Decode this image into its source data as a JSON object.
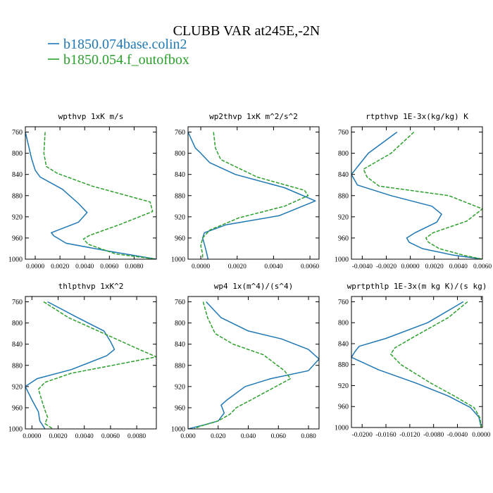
{
  "figure": {
    "title": "CLUBB VAR at245E,-2N",
    "legend": [
      {
        "label": "b1850.074base.colin2",
        "color": "#1f77b4"
      },
      {
        "label": "b1850.054.f_outofbox",
        "color": "#2ca02c"
      }
    ]
  },
  "chart_data": [
    {
      "type": "line",
      "title": "wpthvp  1xK m/s",
      "xlim": [
        -0.0008,
        0.0098
      ],
      "ylim": [
        1000,
        750
      ],
      "yticks": [
        760,
        800,
        840,
        880,
        920,
        960,
        1000
      ],
      "xticks": [
        0.0,
        0.002,
        0.004,
        0.006,
        0.008
      ],
      "xtick_labels": [
        "0.0000",
        "0.0020",
        "0.0040",
        "0.0060",
        "0.0080"
      ],
      "series": [
        {
          "name": "b1850.074base.colin2",
          "color": "#1f77b4",
          "points": [
            [
              -0.0008,
              760
            ],
            [
              -0.0003,
              810
            ],
            [
              0.0,
              832
            ],
            [
              0.0004,
              845
            ],
            [
              0.0022,
              868
            ],
            [
              0.0035,
              895
            ],
            [
              0.0042,
              912
            ],
            [
              0.0035,
              930
            ],
            [
              0.0013,
              950
            ],
            [
              0.0015,
              956
            ],
            [
              0.0025,
              970
            ],
            [
              0.006,
              985
            ],
            [
              0.0098,
              1000
            ]
          ]
        },
        {
          "name": "b1850.054.f_outofbox",
          "color": "#2ca02c",
          "dashed": true,
          "points": [
            [
              0.0008,
              760
            ],
            [
              0.0007,
              800
            ],
            [
              0.0009,
              825
            ],
            [
              0.0018,
              838
            ],
            [
              0.0046,
              862
            ],
            [
              0.0093,
              892
            ],
            [
              0.0095,
              910
            ],
            [
              0.0068,
              935
            ],
            [
              0.0044,
              955
            ],
            [
              0.0039,
              962
            ],
            [
              0.0043,
              972
            ],
            [
              0.0065,
              990
            ],
            [
              0.0098,
              1000
            ]
          ]
        }
      ]
    },
    {
      "type": "line",
      "title": "wp2thvp  1xK m^2/s^2",
      "xlim": [
        -0.0007,
        0.0065
      ],
      "ylim": [
        1000,
        750
      ],
      "yticks": [
        760,
        800,
        840,
        880,
        920,
        960,
        1000
      ],
      "xticks": [
        0.0,
        0.002,
        0.004,
        0.006
      ],
      "xtick_labels": [
        "0.0000",
        "0.0020",
        "0.0040",
        "0.0060"
      ],
      "series": [
        {
          "name": "b1850.074base.colin2",
          "color": "#1f77b4",
          "points": [
            [
              -0.0007,
              760
            ],
            [
              -0.0003,
              790
            ],
            [
              0.0,
              800
            ],
            [
              0.0005,
              818
            ],
            [
              0.0019,
              840
            ],
            [
              0.0046,
              865
            ],
            [
              0.0063,
              890
            ],
            [
              0.0043,
              918
            ],
            [
              0.0014,
              935
            ],
            [
              0.0002,
              950
            ],
            [
              0.0001,
              960
            ],
            [
              0.0002,
              972
            ],
            [
              0.0003,
              985
            ],
            [
              0.0004,
              1000
            ]
          ]
        },
        {
          "name": "b1850.054.f_outofbox",
          "color": "#2ca02c",
          "dashed": true,
          "points": [
            [
              0.0007,
              760
            ],
            [
              0.0008,
              790
            ],
            [
              0.0011,
              812
            ],
            [
              0.0031,
              845
            ],
            [
              0.0057,
              870
            ],
            [
              0.0059,
              880
            ],
            [
              0.0046,
              900
            ],
            [
              0.0021,
              922
            ],
            [
              0.0005,
              945
            ],
            [
              0.0001,
              960
            ],
            [
              0.0,
              975
            ],
            [
              0.0001,
              990
            ],
            [
              0.0001,
              1000
            ]
          ]
        }
      ]
    },
    {
      "type": "line",
      "title": "rtpthvp  1E-3x(kg/kg) K",
      "xlim": [
        -0.0049,
        0.006
      ],
      "ylim": [
        1000,
        750
      ],
      "yticks": [
        760,
        800,
        840,
        880,
        920,
        960,
        1000
      ],
      "xticks": [
        -0.004,
        -0.002,
        0.0,
        0.002,
        0.004,
        0.006
      ],
      "xtick_labels": [
        "-0.0040",
        "-0.0020",
        "0.0000",
        "0.0020",
        "0.0040",
        "0.0060"
      ],
      "series": [
        {
          "name": "b1850.074base.colin2",
          "color": "#1f77b4",
          "points": [
            [
              -0.0011,
              760
            ],
            [
              -0.0035,
              800
            ],
            [
              -0.0049,
              840
            ],
            [
              -0.0044,
              860
            ],
            [
              -0.0016,
              880
            ],
            [
              0.0018,
              900
            ],
            [
              0.0026,
              915
            ],
            [
              0.0022,
              930
            ],
            [
              0.0004,
              950
            ],
            [
              -0.0003,
              960
            ],
            [
              -0.0001,
              968
            ],
            [
              0.001,
              980
            ],
            [
              0.0035,
              992
            ],
            [
              0.006,
              1000
            ]
          ]
        },
        {
          "name": "b1850.054.f_outofbox",
          "color": "#2ca02c",
          "dashed": true,
          "points": [
            [
              0.0003,
              760
            ],
            [
              -0.0016,
              800
            ],
            [
              -0.0039,
              830
            ],
            [
              -0.0036,
              845
            ],
            [
              -0.0026,
              862
            ],
            [
              0.0032,
              880
            ],
            [
              0.006,
              905
            ],
            [
              0.0047,
              928
            ],
            [
              0.0019,
              950
            ],
            [
              0.0013,
              960
            ],
            [
              0.0015,
              968
            ],
            [
              0.0024,
              980
            ],
            [
              0.0045,
              993
            ],
            [
              0.006,
              1000
            ]
          ]
        }
      ]
    },
    {
      "type": "line",
      "title": "thlpthvp  1xK^2",
      "xlim": [
        -0.0005,
        0.0095
      ],
      "ylim": [
        1000,
        750
      ],
      "yticks": [
        760,
        800,
        840,
        880,
        920,
        960,
        1000
      ],
      "xticks": [
        0.0,
        0.002,
        0.004,
        0.006,
        0.008
      ],
      "xtick_labels": [
        "0.0000",
        "0.0020",
        "0.0040",
        "0.0060",
        "0.0080"
      ],
      "series": [
        {
          "name": "b1850.074base.colin2",
          "color": "#1f77b4",
          "points": [
            [
              0.0012,
              760
            ],
            [
              0.0035,
              790
            ],
            [
              0.0055,
              815
            ],
            [
              0.006,
              835
            ],
            [
              0.0063,
              850
            ],
            [
              0.0057,
              862
            ],
            [
              0.003,
              888
            ],
            [
              0.0004,
              905
            ],
            [
              -0.0005,
              920
            ],
            [
              0.0,
              945
            ],
            [
              0.0005,
              968
            ],
            [
              0.0006,
              985
            ],
            [
              0.001,
              1000
            ]
          ]
        },
        {
          "name": "b1850.054.f_outofbox",
          "color": "#2ca02c",
          "dashed": true,
          "points": [
            [
              0.0009,
              760
            ],
            [
              0.0028,
              790
            ],
            [
              0.0055,
              820
            ],
            [
              0.0082,
              850
            ],
            [
              0.0095,
              864
            ],
            [
              0.0072,
              875
            ],
            [
              0.003,
              895
            ],
            [
              0.001,
              912
            ],
            [
              0.0005,
              925
            ],
            [
              0.0008,
              950
            ],
            [
              0.001,
              965
            ],
            [
              0.0012,
              978
            ],
            [
              0.001,
              990
            ],
            [
              0.0016,
              1000
            ]
          ]
        }
      ]
    },
    {
      "type": "line",
      "title": "wp4  1x(m^4)/(s^4)",
      "xlim": [
        0.0,
        0.087
      ],
      "ylim": [
        1000,
        750
      ],
      "yticks": [
        760,
        800,
        840,
        880,
        920,
        960,
        1000
      ],
      "xticks": [
        0.0,
        0.02,
        0.04,
        0.06,
        0.08
      ],
      "xtick_labels": [
        "0.000",
        "0.020",
        "0.040",
        "0.060",
        "0.080"
      ],
      "series": [
        {
          "name": "b1850.074base.colin2",
          "color": "#1f77b4",
          "points": [
            [
              0.012,
              760
            ],
            [
              0.022,
              790
            ],
            [
              0.04,
              815
            ],
            [
              0.062,
              830
            ],
            [
              0.08,
              850
            ],
            [
              0.087,
              868
            ],
            [
              0.08,
              890
            ],
            [
              0.055,
              905
            ],
            [
              0.038,
              920
            ],
            [
              0.026,
              945
            ],
            [
              0.022,
              955
            ],
            [
              0.024,
              970
            ],
            [
              0.02,
              985
            ],
            [
              0.01,
              993
            ],
            [
              0.0,
              1000
            ]
          ]
        },
        {
          "name": "b1850.054.f_outofbox",
          "color": "#2ca02c",
          "dashed": true,
          "points": [
            [
              0.01,
              760
            ],
            [
              0.013,
              790
            ],
            [
              0.018,
              820
            ],
            [
              0.03,
              840
            ],
            [
              0.05,
              860
            ],
            [
              0.064,
              890
            ],
            [
              0.068,
              905
            ],
            [
              0.055,
              925
            ],
            [
              0.042,
              945
            ],
            [
              0.032,
              960
            ],
            [
              0.028,
              972
            ],
            [
              0.02,
              985
            ],
            [
              0.008,
              995
            ],
            [
              0.004,
              1000
            ]
          ]
        }
      ]
    },
    {
      "type": "line",
      "title": "wprtpthlp  1E-3x(m kg K)/(s kg)",
      "xlim": [
        -0.0218,
        0.0002
      ],
      "ylim": [
        1000,
        750
      ],
      "yticks": [
        760,
        800,
        840,
        880,
        920,
        960,
        1000
      ],
      "xticks": [
        -0.02,
        -0.016,
        -0.012,
        -0.008,
        -0.004,
        0.0
      ],
      "xtick_labels": [
        "-0.0200",
        "-0.0160",
        "-0.0120",
        "-0.0080",
        "-0.0040",
        "0.0000"
      ],
      "series": [
        {
          "name": "b1850.074base.colin2",
          "color": "#1f77b4",
          "points": [
            [
              -0.003,
              760
            ],
            [
              -0.009,
              800
            ],
            [
              -0.016,
              830
            ],
            [
              -0.0205,
              845
            ],
            [
              -0.0212,
              855
            ],
            [
              -0.0218,
              866
            ],
            [
              -0.0172,
              890
            ],
            [
              -0.011,
              915
            ],
            [
              -0.0055,
              940
            ],
            [
              -0.0018,
              962
            ],
            [
              -0.0004,
              980
            ],
            [
              0.0,
              1000
            ]
          ]
        },
        {
          "name": "b1850.054.f_outofbox",
          "color": "#2ca02c",
          "dashed": true,
          "points": [
            [
              -0.0023,
              760
            ],
            [
              -0.0055,
              790
            ],
            [
              -0.011,
              825
            ],
            [
              -0.0145,
              848
            ],
            [
              -0.0152,
              860
            ],
            [
              -0.0135,
              880
            ],
            [
              -0.0085,
              915
            ],
            [
              -0.0045,
              940
            ],
            [
              -0.0012,
              962
            ],
            [
              -0.0002,
              982
            ],
            [
              0.0,
              1000
            ]
          ]
        }
      ]
    }
  ]
}
